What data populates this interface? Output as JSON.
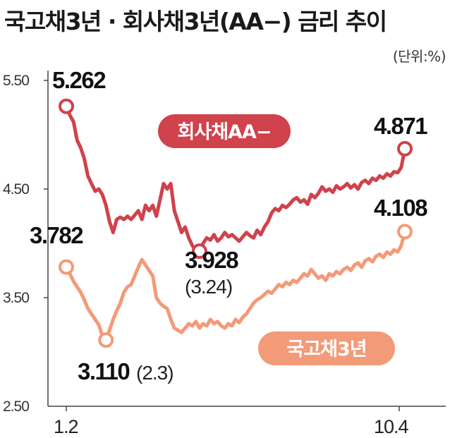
{
  "header": {
    "title": "국고채3년 · 회사채3년(AA−) 금리 추이",
    "unit": "(단위:%)"
  },
  "colors": {
    "corporate": "#d0424c",
    "treasury": "#f39a78",
    "axis": "#444444"
  },
  "chart_data": {
    "type": "line",
    "title": "국고채3년 · 회사채3년(AA−) 금리 추이",
    "ylim": [
      2.5,
      5.5
    ],
    "y_ticks": [
      "5.50",
      "4.50",
      "3.50",
      "2.50"
    ],
    "x_ticks": [
      "1.2",
      "10.4"
    ],
    "series": [
      {
        "name": "회사채AA−",
        "values": [
          5.262,
          5.18,
          5.12,
          4.95,
          4.88,
          4.78,
          4.62,
          4.55,
          4.48,
          4.5,
          4.45,
          4.35,
          4.2,
          4.1,
          4.22,
          4.24,
          4.22,
          4.25,
          4.22,
          4.26,
          4.3,
          4.22,
          4.35,
          4.3,
          4.35,
          4.25,
          4.4,
          4.55,
          4.5,
          4.55,
          4.3,
          4.2,
          4.1,
          4.15,
          4.05,
          3.98,
          3.93,
          3.928,
          4.0,
          4.05,
          4.03,
          4.08,
          4.02,
          4.05,
          4.1,
          4.06,
          4.08,
          4.05,
          4.02,
          4.06,
          4.1,
          4.07,
          4.05,
          4.12,
          4.08,
          4.15,
          4.2,
          4.28,
          4.32,
          4.3,
          4.35,
          4.33,
          4.36,
          4.4,
          4.42,
          4.38,
          4.4,
          4.36,
          4.45,
          4.42,
          4.46,
          4.52,
          4.48,
          4.5,
          4.47,
          4.53,
          4.5,
          4.52,
          4.55,
          4.51,
          4.54,
          4.5,
          4.56,
          4.58,
          4.55,
          4.6,
          4.58,
          4.62,
          4.6,
          4.64,
          4.62,
          4.66,
          4.65,
          4.7,
          4.871
        ],
        "end_label": "4.871",
        "min_label": "3.928",
        "min_note": "(3.24)",
        "start_label": "5.262"
      },
      {
        "name": "국고채3년",
        "values": [
          3.782,
          3.72,
          3.65,
          3.6,
          3.55,
          3.48,
          3.4,
          3.35,
          3.3,
          3.25,
          3.15,
          3.11,
          3.2,
          3.3,
          3.38,
          3.45,
          3.55,
          3.6,
          3.62,
          3.7,
          3.78,
          3.85,
          3.8,
          3.75,
          3.7,
          3.5,
          3.45,
          3.42,
          3.4,
          3.3,
          3.22,
          3.2,
          3.18,
          3.22,
          3.26,
          3.24,
          3.28,
          3.22,
          3.26,
          3.24,
          3.3,
          3.26,
          3.28,
          3.24,
          3.22,
          3.26,
          3.24,
          3.3,
          3.27,
          3.32,
          3.35,
          3.4,
          3.45,
          3.48,
          3.5,
          3.53,
          3.56,
          3.54,
          3.58,
          3.62,
          3.6,
          3.64,
          3.62,
          3.66,
          3.64,
          3.68,
          3.72,
          3.7,
          3.76,
          3.72,
          3.68,
          3.7,
          3.66,
          3.72,
          3.7,
          3.74,
          3.72,
          3.76,
          3.78,
          3.75,
          3.8,
          3.82,
          3.78,
          3.84,
          3.86,
          3.83,
          3.88,
          3.9,
          3.87,
          3.92,
          3.9,
          3.94,
          3.92,
          3.98,
          4.108
        ],
        "end_label": "4.108",
        "min_label": "3.110",
        "min_note": "(2.3)",
        "start_label": "3.782"
      }
    ],
    "grid": false,
    "legend": "inline pill labels"
  }
}
